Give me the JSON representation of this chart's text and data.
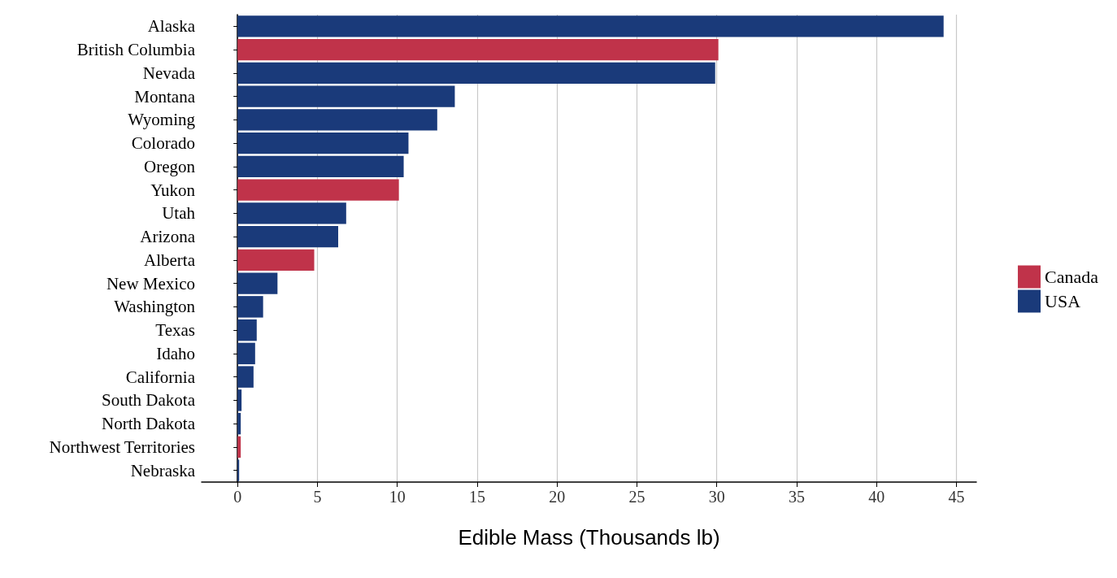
{
  "chart_data": {
    "type": "bar",
    "orientation": "horizontal",
    "stacked": true,
    "xlabel": "Edible Mass (Thousands lb)",
    "categories": [
      "Alaska",
      "British Columbia",
      "Nevada",
      "Montana",
      "Wyoming",
      "Colorado",
      "Oregon",
      "Yukon",
      "Utah",
      "Arizona",
      "Alberta",
      "New Mexico",
      "Washington",
      "Texas",
      "Idaho",
      "California",
      "South Dakota",
      "North Dakota",
      "Northwest Territories",
      "Nebraska"
    ],
    "series": [
      {
        "name": "Canada",
        "color": "#c0334a",
        "values": [
          null,
          30.1,
          null,
          null,
          null,
          null,
          null,
          10.1,
          null,
          null,
          4.8,
          null,
          null,
          null,
          null,
          null,
          null,
          null,
          0.2,
          null
        ]
      },
      {
        "name": "USA",
        "color": "#1a3a7a",
        "values": [
          44.2,
          null,
          29.9,
          13.6,
          12.5,
          10.7,
          10.4,
          null,
          6.8,
          6.3,
          null,
          2.5,
          1.6,
          1.2,
          1.1,
          1.0,
          0.25,
          0.2,
          null,
          0.1
        ]
      }
    ],
    "xlim": [
      -2.25,
      46.25
    ],
    "xticks": [
      0,
      5,
      10,
      15,
      20,
      25,
      30,
      35,
      40,
      45
    ],
    "grid": "x",
    "legend": "right"
  }
}
